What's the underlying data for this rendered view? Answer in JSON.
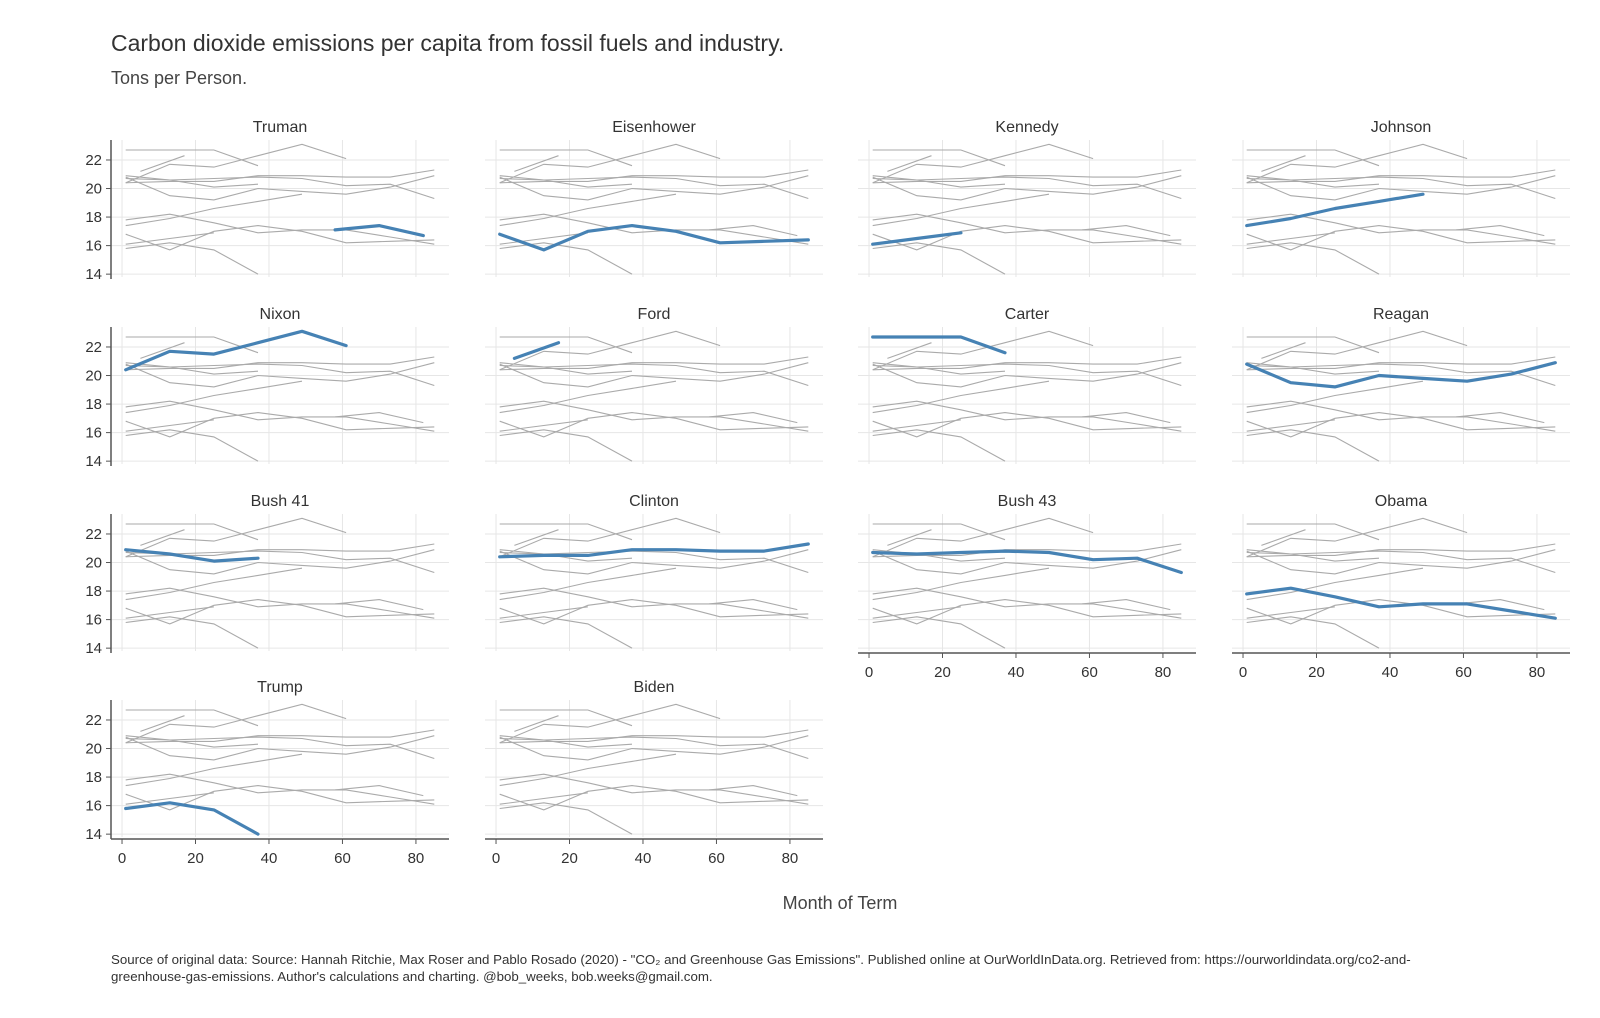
{
  "title": "Carbon dioxide emissions per capita from fossil fuels and industry.",
  "subtitle": "Tons per Person.",
  "xlabel": "Month of Term",
  "source": "Source of original data: Source: Hannah Ritchie, Max Roser and Pablo Rosado (2020) - \"CO₂ and Greenhouse Gas Emissions\". Published online at OurWorldInData.org. Retrieved from: https://ourworldindata.org/co2-and-greenhouse-gas-emissions. Author's calculations and charting. @bob_weeks, bob.weeks@gmail.com.",
  "colors": {
    "highlight": "#4682b4",
    "background_lines": "#aaaaaa",
    "grid": "#e6e6e6",
    "axis": "#555555",
    "text": "#333333"
  },
  "chart_data": {
    "type": "line",
    "facet": "small multiples, each panel highlights one president against all others",
    "x_ticks": [
      0,
      20,
      40,
      60,
      80
    ],
    "y_ticks": [
      14,
      16,
      18,
      20,
      22
    ],
    "xlim": [
      -3,
      89
    ],
    "ylim": [
      13.8,
      23.4
    ],
    "grid": true,
    "x_axis_panels": [
      "Bush 43",
      "Obama",
      "Trump",
      "Biden"
    ],
    "y_axis_panels": [
      "Truman",
      "Nixon",
      "Bush 41",
      "Trump"
    ],
    "series": [
      {
        "name": "Truman",
        "x": [
          58,
          70,
          82
        ],
        "y": [
          17.1,
          17.4,
          16.7
        ]
      },
      {
        "name": "Eisenhower",
        "x": [
          1,
          13,
          25,
          37,
          49,
          61,
          73,
          85
        ],
        "y": [
          16.8,
          15.7,
          17.0,
          17.4,
          17.0,
          16.2,
          16.3,
          16.4
        ]
      },
      {
        "name": "Kennedy",
        "x": [
          1,
          13,
          25
        ],
        "y": [
          16.1,
          16.5,
          16.9
        ]
      },
      {
        "name": "Johnson",
        "x": [
          1,
          13,
          25,
          37,
          49
        ],
        "y": [
          17.4,
          17.9,
          18.6,
          19.1,
          19.6
        ]
      },
      {
        "name": "Nixon",
        "x": [
          1,
          13,
          25,
          37,
          49,
          61
        ],
        "y": [
          20.4,
          21.7,
          21.5,
          22.3,
          23.1,
          22.1
        ]
      },
      {
        "name": "Ford",
        "x": [
          5,
          17
        ],
        "y": [
          21.2,
          22.3
        ]
      },
      {
        "name": "Carter",
        "x": [
          1,
          13,
          25,
          37
        ],
        "y": [
          22.7,
          22.7,
          22.7,
          21.6
        ]
      },
      {
        "name": "Reagan",
        "x": [
          1,
          13,
          25,
          37,
          49,
          61,
          73,
          85
        ],
        "y": [
          20.8,
          19.5,
          19.2,
          20.0,
          19.8,
          19.6,
          20.1,
          20.9
        ]
      },
      {
        "name": "Bush 41",
        "x": [
          1,
          13,
          25,
          37
        ],
        "y": [
          20.9,
          20.6,
          20.1,
          20.3
        ]
      },
      {
        "name": "Clinton",
        "x": [
          1,
          13,
          25,
          37,
          49,
          61,
          73,
          85
        ],
        "y": [
          20.4,
          20.5,
          20.5,
          20.9,
          20.9,
          20.8,
          20.8,
          21.3
        ]
      },
      {
        "name": "Bush 43",
        "x": [
          1,
          13,
          25,
          37,
          49,
          61,
          73,
          85
        ],
        "y": [
          20.7,
          20.6,
          20.7,
          20.8,
          20.7,
          20.2,
          20.3,
          19.3
        ]
      },
      {
        "name": "Obama",
        "x": [
          1,
          13,
          25,
          37,
          49,
          61,
          73,
          85
        ],
        "y": [
          17.8,
          18.2,
          17.6,
          16.9,
          17.1,
          17.1,
          16.6,
          16.1
        ]
      },
      {
        "name": "Trump",
        "x": [
          1,
          13,
          25,
          37
        ],
        "y": [
          15.8,
          16.2,
          15.7,
          14.0
        ]
      },
      {
        "name": "Biden",
        "x": [],
        "y": []
      }
    ]
  }
}
